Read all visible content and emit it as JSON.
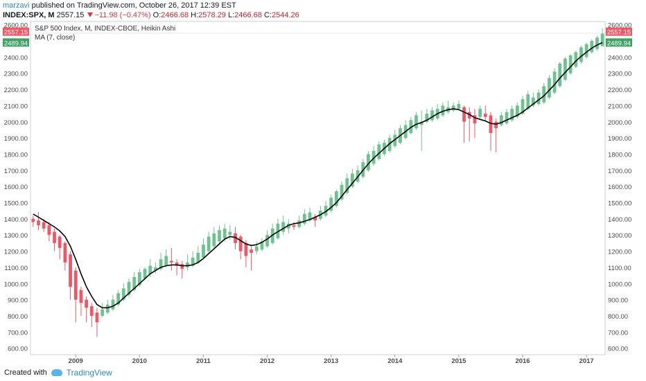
{
  "header": {
    "author": "marzavi",
    "published_text": "published on TradingView.com, October 26, 2017 12:39 EST",
    "symbol": "INDEX:SPX, M",
    "last_price": "2557.15",
    "change": "−11.98 (−0.47%)",
    "o_label": "O:",
    "o_value": "2466.68",
    "h_label": "H:",
    "h_value": "2578.29",
    "l_label": "L:",
    "l_value": "2466.68",
    "c_label": "C:",
    "c_value": "2544.26"
  },
  "legend": {
    "title": "S&P 500 Index, M, INDEX-CBOE, Heikin Ashi",
    "ma": "MA (7, close)"
  },
  "footer": {
    "created_with": "Created with",
    "brand": "TradingView"
  },
  "colors": {
    "up": "#6dc290",
    "down": "#ef5766",
    "ma": "#000000",
    "axis_text": "#4a4a4a",
    "last_badge": "#ef5766",
    "ma_badge": "#3da264"
  },
  "chart_data": {
    "type": "candlestick",
    "title": "S&P 500 Index, M, INDEX-CBOE, Heikin Ashi",
    "ylim": [
      560,
      2620
    ],
    "y_ticks": [
      600,
      700,
      800,
      900,
      1000,
      1100,
      1200,
      1300,
      1400,
      1500,
      1600,
      1700,
      1800,
      1900,
      2000,
      2100,
      2200,
      2300,
      2400,
      2500,
      2600
    ],
    "y_tick_labels": [
      "600.00",
      "700.00",
      "800.00",
      "900.00",
      "1000.00",
      "1100.00",
      "1200.00",
      "1300.00",
      "1400.00",
      "1500.00",
      "1600.00",
      "1700.00",
      "1800.00",
      "1900.00",
      "2000.00",
      "2100.00",
      "2200.00",
      "2300.00",
      "2400.00",
      "2500.00",
      "2600.00"
    ],
    "x_labels": [
      "2009",
      "2010",
      "2011",
      "2012",
      "2013",
      "2014",
      "2015",
      "2016",
      "2017"
    ],
    "x_label_index": [
      8,
      20,
      32,
      44,
      56,
      68,
      80,
      92,
      104
    ],
    "last_price_label": "2557.15",
    "ma_last_label": "2489.94",
    "ma_last_value": 2489.94,
    "last_price_value": 2557.15,
    "series": [
      {
        "name": "S&P 500 Index, M, INDEX-CBOE, Heikin Ashi",
        "ohlc": [
          [
            1400,
            1420,
            1350,
            1380
          ],
          [
            1390,
            1440,
            1330,
            1360
          ],
          [
            1380,
            1400,
            1320,
            1340
          ],
          [
            1360,
            1380,
            1260,
            1300
          ],
          [
            1320,
            1340,
            1200,
            1250
          ],
          [
            1290,
            1300,
            1150,
            1220
          ],
          [
            1250,
            1260,
            1080,
            1130
          ],
          [
            1180,
            1200,
            900,
            980
          ],
          [
            1080,
            1100,
            760,
            900
          ],
          [
            960,
            980,
            800,
            880
          ],
          [
            900,
            920,
            760,
            850
          ],
          [
            860,
            880,
            730,
            800
          ],
          [
            820,
            850,
            670,
            760
          ],
          [
            800,
            880,
            790,
            840
          ],
          [
            820,
            900,
            810,
            870
          ],
          [
            840,
            930,
            830,
            900
          ],
          [
            870,
            960,
            860,
            940
          ],
          [
            900,
            1000,
            890,
            970
          ],
          [
            930,
            1030,
            920,
            1010
          ],
          [
            960,
            1070,
            950,
            1040
          ],
          [
            990,
            1090,
            980,
            1070
          ],
          [
            1030,
            1100,
            1020,
            1090
          ],
          [
            1060,
            1150,
            1040,
            1110
          ],
          [
            1080,
            1130,
            1060,
            1100
          ],
          [
            1090,
            1190,
            1080,
            1150
          ],
          [
            1110,
            1210,
            1100,
            1170
          ],
          [
            1140,
            1220,
            1080,
            1130
          ],
          [
            1130,
            1150,
            1050,
            1110
          ],
          [
            1120,
            1140,
            1030,
            1090
          ],
          [
            1100,
            1180,
            1080,
            1130
          ],
          [
            1110,
            1200,
            1100,
            1160
          ],
          [
            1130,
            1230,
            1120,
            1190
          ],
          [
            1160,
            1280,
            1150,
            1240
          ],
          [
            1200,
            1320,
            1190,
            1290
          ],
          [
            1230,
            1350,
            1220,
            1310
          ],
          [
            1260,
            1360,
            1240,
            1330
          ],
          [
            1280,
            1370,
            1260,
            1340
          ],
          [
            1300,
            1360,
            1270,
            1320
          ],
          [
            1310,
            1350,
            1210,
            1250
          ],
          [
            1290,
            1300,
            1150,
            1200
          ],
          [
            1250,
            1270,
            1100,
            1170
          ],
          [
            1210,
            1230,
            1080,
            1190
          ],
          [
            1200,
            1260,
            1180,
            1230
          ],
          [
            1210,
            1280,
            1200,
            1260
          ],
          [
            1230,
            1330,
            1220,
            1300
          ],
          [
            1250,
            1370,
            1240,
            1340
          ],
          [
            1280,
            1400,
            1270,
            1370
          ],
          [
            1320,
            1420,
            1300,
            1380
          ],
          [
            1340,
            1400,
            1310,
            1370
          ],
          [
            1360,
            1380,
            1330,
            1350
          ],
          [
            1350,
            1420,
            1340,
            1390
          ],
          [
            1370,
            1460,
            1360,
            1430
          ],
          [
            1390,
            1470,
            1380,
            1440
          ],
          [
            1410,
            1430,
            1350,
            1390
          ],
          [
            1400,
            1480,
            1390,
            1450
          ],
          [
            1420,
            1510,
            1410,
            1480
          ],
          [
            1450,
            1550,
            1440,
            1530
          ],
          [
            1480,
            1580,
            1470,
            1570
          ],
          [
            1520,
            1630,
            1510,
            1610
          ],
          [
            1560,
            1680,
            1550,
            1650
          ],
          [
            1600,
            1710,
            1590,
            1680
          ],
          [
            1630,
            1730,
            1620,
            1700
          ],
          [
            1660,
            1770,
            1650,
            1750
          ],
          [
            1700,
            1820,
            1690,
            1800
          ],
          [
            1740,
            1850,
            1730,
            1820
          ],
          [
            1770,
            1880,
            1760,
            1860
          ],
          [
            1800,
            1890,
            1790,
            1870
          ],
          [
            1820,
            1920,
            1810,
            1900
          ],
          [
            1850,
            1950,
            1840,
            1920
          ],
          [
            1870,
            1980,
            1860,
            1960
          ],
          [
            1900,
            2010,
            1890,
            1980
          ],
          [
            1930,
            2030,
            1920,
            2010
          ],
          [
            1960,
            2060,
            1950,
            2040
          ],
          [
            1980,
            2070,
            1820,
            2000
          ],
          [
            2000,
            2080,
            1990,
            2050
          ],
          [
            2010,
            2090,
            2000,
            2070
          ],
          [
            2020,
            2110,
            2010,
            2080
          ],
          [
            2040,
            2120,
            2030,
            2100
          ],
          [
            2060,
            2130,
            2050,
            2090
          ],
          [
            2070,
            2120,
            2060,
            2100
          ],
          [
            2080,
            2130,
            2070,
            2110
          ],
          [
            2090,
            2100,
            1870,
            2000
          ],
          [
            2060,
            2090,
            1880,
            2020
          ],
          [
            2040,
            2080,
            1900,
            1990
          ],
          [
            2030,
            2100,
            2020,
            2080
          ],
          [
            2050,
            2100,
            2000,
            2030
          ],
          [
            2040,
            2060,
            1820,
            1930
          ],
          [
            2000,
            2020,
            1810,
            1960
          ],
          [
            1980,
            2060,
            1970,
            2040
          ],
          [
            1990,
            2080,
            1980,
            2060
          ],
          [
            2010,
            2100,
            2000,
            2080
          ],
          [
            2030,
            2120,
            2020,
            2100
          ],
          [
            2050,
            2160,
            2040,
            2140
          ],
          [
            2080,
            2190,
            2070,
            2170
          ],
          [
            2100,
            2180,
            2090,
            2150
          ],
          [
            2110,
            2200,
            2100,
            2180
          ],
          [
            2120,
            2240,
            2110,
            2220
          ],
          [
            2150,
            2290,
            2140,
            2270
          ],
          [
            2180,
            2330,
            2170,
            2310
          ],
          [
            2220,
            2370,
            2210,
            2360
          ],
          [
            2260,
            2400,
            2250,
            2390
          ],
          [
            2300,
            2420,
            2290,
            2410
          ],
          [
            2340,
            2440,
            2330,
            2430
          ],
          [
            2370,
            2470,
            2360,
            2460
          ],
          [
            2400,
            2490,
            2390,
            2480
          ],
          [
            2430,
            2510,
            2420,
            2500
          ],
          [
            2450,
            2530,
            2440,
            2520
          ],
          [
            2466.68,
            2578.29,
            2466.68,
            2544.26
          ]
        ]
      },
      {
        "name": "MA (7, close)",
        "values": [
          1430,
          1410,
          1390,
          1370,
          1350,
          1325,
          1290,
          1230,
          1150,
          1060,
          980,
          920,
          870,
          850,
          850,
          860,
          880,
          910,
          940,
          970,
          1000,
          1030,
          1060,
          1080,
          1100,
          1110,
          1115,
          1115,
          1110,
          1110,
          1115,
          1130,
          1155,
          1185,
          1215,
          1245,
          1275,
          1290,
          1285,
          1265,
          1245,
          1235,
          1240,
          1255,
          1275,
          1300,
          1320,
          1340,
          1360,
          1370,
          1375,
          1385,
          1395,
          1410,
          1425,
          1445,
          1470,
          1500,
          1540,
          1580,
          1620,
          1660,
          1700,
          1740,
          1775,
          1805,
          1835,
          1865,
          1890,
          1915,
          1940,
          1965,
          1985,
          1995,
          2010,
          2030,
          2050,
          2065,
          2075,
          2080,
          2075,
          2060,
          2045,
          2025,
          2015,
          2005,
          1990,
          1985,
          1995,
          2010,
          2025,
          2040,
          2060,
          2085,
          2110,
          2135,
          2160,
          2195,
          2230,
          2270,
          2305,
          2340,
          2375,
          2405,
          2430,
          2455,
          2475,
          2489.94
        ]
      }
    ]
  }
}
